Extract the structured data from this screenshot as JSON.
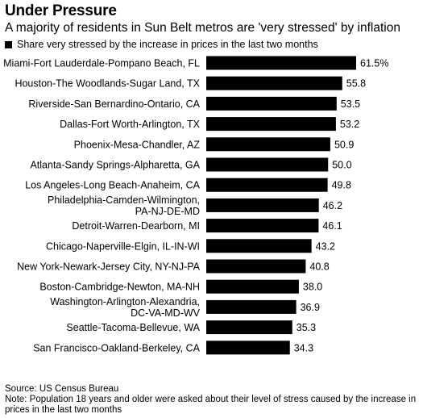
{
  "chart_data": {
    "type": "bar",
    "orientation": "horizontal",
    "title": "Under Pressure",
    "subtitle": "A majority of residents in Sun Belt metros are 'very stressed' by inflation",
    "legend": "Share very stressed by the increase in prices in the last two months",
    "categories": [
      [
        "Miami-Fort Lauderdale-Pompano Beach, FL"
      ],
      [
        "Houston-The Woodlands-Sugar Land, TX"
      ],
      [
        "Riverside-San Bernardino-Ontario, CA"
      ],
      [
        "Dallas-Fort Worth-Arlington, TX"
      ],
      [
        "Phoenix-Mesa-Chandler, AZ"
      ],
      [
        "Atlanta-Sandy Springs-Alpharetta, GA"
      ],
      [
        "Los Angeles-Long Beach-Anaheim, CA"
      ],
      [
        "Philadelphia-Camden-Wilmington,",
        "PA-NJ-DE-MD"
      ],
      [
        "Detroit-Warren-Dearborn, MI"
      ],
      [
        "Chicago-Naperville-Elgin, IL-IN-WI"
      ],
      [
        "New York-Newark-Jersey City, NY-NJ-PA"
      ],
      [
        "Boston-Cambridge-Newton, MA-NH"
      ],
      [
        "Washington-Arlington-Alexandria,",
        "DC-VA-MD-WV"
      ],
      [
        "Seattle-Tacoma-Bellevue, WA"
      ],
      [
        "San Francisco-Oakland-Berkeley, CA"
      ]
    ],
    "values": [
      61.5,
      55.8,
      53.5,
      53.2,
      50.9,
      50.0,
      49.8,
      46.2,
      46.1,
      43.2,
      40.8,
      38.0,
      36.9,
      35.3,
      34.3
    ],
    "value_labels": [
      "61.5%",
      "55.8",
      "53.5",
      "53.2",
      "50.9",
      "50.0",
      "49.8",
      "46.2",
      "46.1",
      "43.2",
      "40.8",
      "38.0",
      "36.9",
      "35.3",
      "34.3"
    ],
    "xlim": [
      0,
      61.5
    ],
    "grid": false,
    "bar_color": "#000000"
  },
  "footer": {
    "source": "Source: US Census Bureau",
    "note": "Note: Population 18 years and older were asked about their level of stress caused by the increase in prices in the last two months"
  }
}
